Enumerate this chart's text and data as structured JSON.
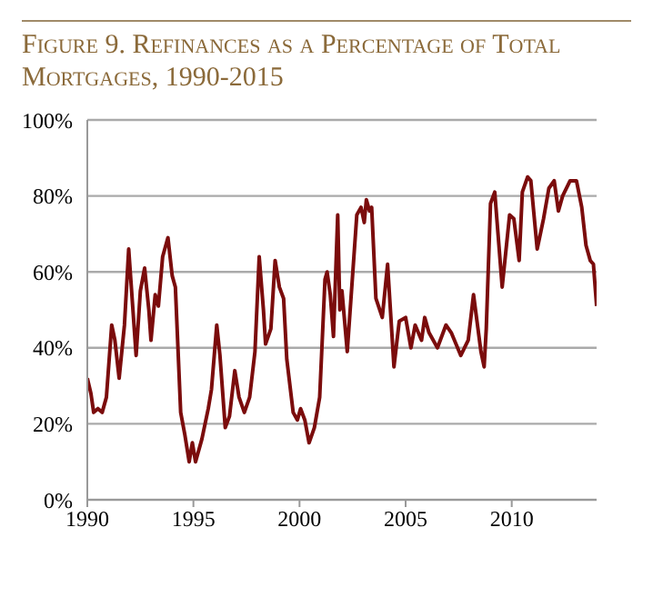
{
  "chart_data": {
    "type": "line",
    "title": "Figure 9. Refinances as a Percentage of Total Mortgages, 1990-2015",
    "x": [
      1990.0,
      1990.17,
      1990.3,
      1990.5,
      1990.7,
      1990.9,
      1991.15,
      1991.3,
      1991.5,
      1991.75,
      1991.95,
      1992.05,
      1992.3,
      1992.5,
      1992.7,
      1992.9,
      1993.0,
      1993.2,
      1993.35,
      1993.55,
      1993.8,
      1994.0,
      1994.15,
      1994.4,
      1994.6,
      1994.8,
      1994.95,
      1995.1,
      1995.4,
      1995.7,
      1995.85,
      1996.1,
      1996.25,
      1996.5,
      1996.7,
      1996.95,
      1997.15,
      1997.4,
      1997.65,
      1997.9,
      1998.1,
      1998.3,
      1998.4,
      1998.65,
      1998.85,
      1999.05,
      1999.25,
      1999.4,
      1999.7,
      1999.9,
      2000.05,
      2000.25,
      2000.45,
      2000.7,
      2000.95,
      2001.2,
      2001.3,
      2001.45,
      2001.6,
      2001.8,
      2001.9,
      2002.0,
      2002.25,
      2002.7,
      2002.9,
      2003.05,
      2003.15,
      2003.3,
      2003.4,
      2003.6,
      2003.9,
      2004.15,
      2004.45,
      2004.7,
      2005.0,
      2005.25,
      2005.45,
      2005.75,
      2005.9,
      2006.1,
      2006.5,
      2006.9,
      2007.15,
      2007.6,
      2007.95,
      2008.2,
      2008.55,
      2008.7,
      2008.8,
      2009.0,
      2009.2,
      2009.55,
      2009.9,
      2010.1,
      2010.35,
      2010.5,
      2010.75,
      2010.9,
      2011.2,
      2011.5,
      2011.75,
      2012.0,
      2012.2,
      2012.4,
      2012.75,
      2013.05,
      2013.3,
      2013.5,
      2013.7,
      2013.85,
      2014.0
    ],
    "series": [
      {
        "color": "#7b0c0c",
        "values": [
          32,
          28,
          23,
          24,
          23,
          27,
          46,
          42,
          32,
          46,
          66,
          58,
          38,
          55,
          61,
          50,
          42,
          54,
          51,
          64,
          69,
          59,
          56,
          23,
          17,
          10,
          15,
          10,
          16,
          24,
          29,
          46,
          38,
          19,
          22,
          34,
          27,
          23,
          27,
          39,
          64,
          50,
          41,
          45,
          63,
          56,
          53,
          37,
          23,
          21,
          24,
          21,
          15,
          19,
          27,
          58,
          60,
          54,
          43,
          75,
          50,
          55,
          39,
          75,
          77,
          73,
          79,
          76,
          77,
          53,
          48,
          62,
          35,
          47,
          48,
          40,
          46,
          42,
          48,
          44,
          40,
          46,
          44,
          38,
          42,
          54,
          39,
          35,
          45,
          78,
          81,
          56,
          75,
          74,
          63,
          81,
          85,
          84,
          66,
          74,
          82,
          84,
          76,
          80,
          84,
          84,
          77,
          67,
          63,
          62,
          51
        ]
      }
    ],
    "xlim": [
      1990,
      2014
    ],
    "xticks": [
      1990,
      1995,
      2000,
      2005,
      2010
    ],
    "ylim": [
      0,
      100
    ],
    "yticks": [
      {
        "value": 0,
        "label": "0%"
      },
      {
        "value": 20,
        "label": "20%"
      },
      {
        "value": 40,
        "label": "40%"
      },
      {
        "value": 60,
        "label": "60%"
      },
      {
        "value": 80,
        "label": "80%"
      },
      {
        "value": 100,
        "label": "100%"
      }
    ],
    "grid": "y",
    "marker": "none",
    "line_style": "solid"
  }
}
